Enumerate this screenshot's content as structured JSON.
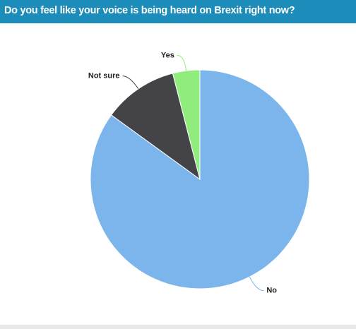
{
  "chart_data": {
    "type": "pie",
    "title": "Do you feel like your voice is being heard on Brexit right now?",
    "categories": [
      "No",
      "Not sure",
      "Yes"
    ],
    "values": [
      85,
      11,
      4
    ],
    "colors": [
      "#7cb5ec",
      "#434348",
      "#90ed7d"
    ]
  }
}
